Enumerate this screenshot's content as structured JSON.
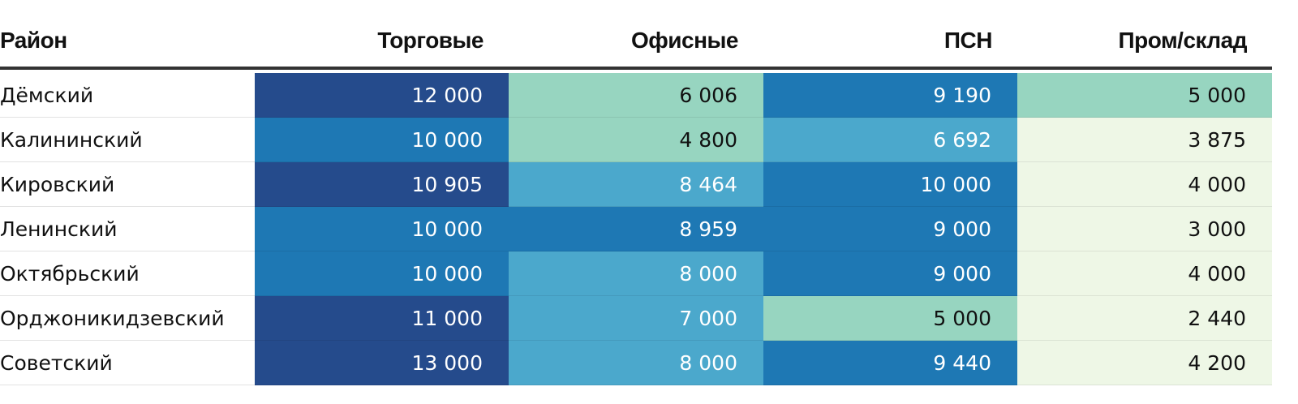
{
  "chart_data": {
    "type": "table",
    "columns": [
      "Район",
      "Торговые",
      "Офисные",
      "ПСН",
      "Пром/склад"
    ],
    "rows": [
      {
        "name": "Дёмский",
        "values": [
          "12 000",
          "6 006",
          "9 190",
          "5 000"
        ]
      },
      {
        "name": "Калининский",
        "values": [
          "10 000",
          "4 800",
          "6 692",
          "3 875"
        ]
      },
      {
        "name": "Кировский",
        "values": [
          "10 905",
          "8 464",
          "10 000",
          "4 000"
        ]
      },
      {
        "name": "Ленинский",
        "values": [
          "10 000",
          "8 959",
          "9 000",
          "3 000"
        ]
      },
      {
        "name": "Октябрьский",
        "values": [
          "10 000",
          "8 000",
          "9 000",
          "4 000"
        ]
      },
      {
        "name": "Орджоникидзевский",
        "values": [
          "11 000",
          "7 000",
          "5 000",
          "2 440"
        ]
      },
      {
        "name": "Советский",
        "values": [
          "13 000",
          "8 000",
          "9 440",
          "4 200"
        ]
      }
    ],
    "cell_colors": [
      [
        "#254b8c",
        "#97d5c0",
        "#1e78b4",
        "#97d5c0"
      ],
      [
        "#1e78b4",
        "#97d5c0",
        "#4ba8cc",
        "#eef7e6"
      ],
      [
        "#254b8c",
        "#4ba8cc",
        "#1e78b4",
        "#eef7e6"
      ],
      [
        "#1e78b4",
        "#1e78b4",
        "#1e78b4",
        "#eef7e6"
      ],
      [
        "#1e78b4",
        "#4ba8cc",
        "#1e78b4",
        "#eef7e6"
      ],
      [
        "#254b8c",
        "#4ba8cc",
        "#97d5c0",
        "#eef7e6"
      ],
      [
        "#254b8c",
        "#4ba8cc",
        "#1e78b4",
        "#eef7e6"
      ]
    ]
  }
}
